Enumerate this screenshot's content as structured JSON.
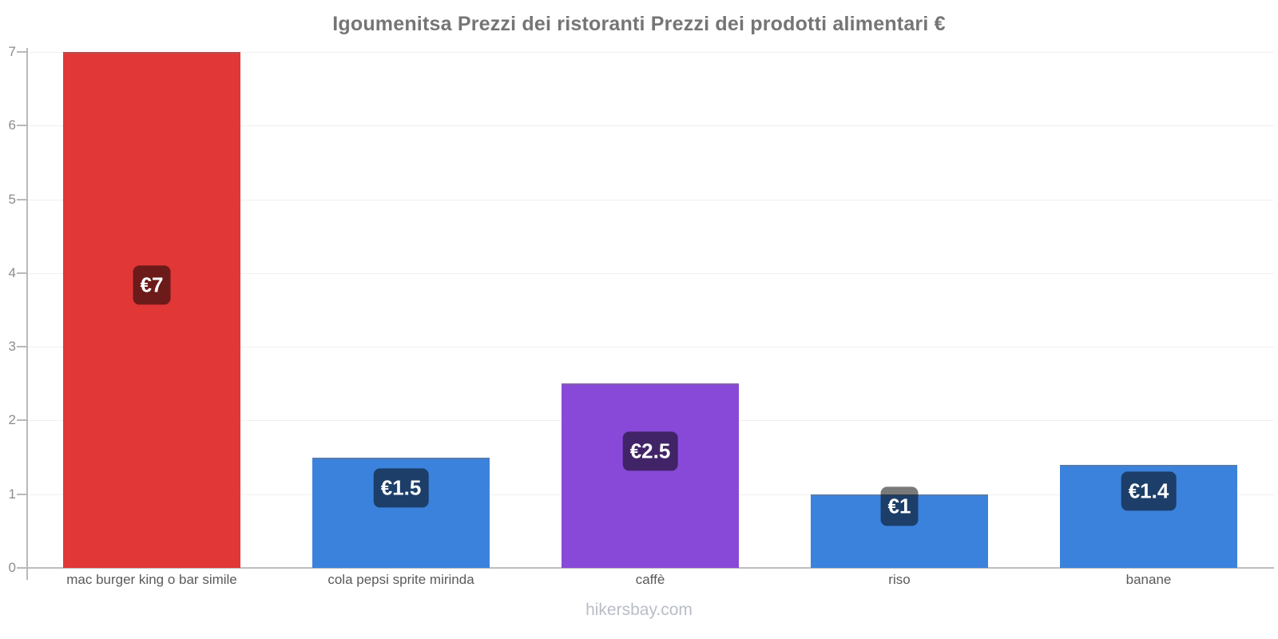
{
  "title": "Igoumenitsa Prezzi dei ristoranti Prezzi dei prodotti alimentari €",
  "footer": {
    "watermark": "hikersbay.com"
  },
  "chart_data": {
    "type": "bar",
    "title": "Igoumenitsa Prezzi dei ristoranti Prezzi dei prodotti alimentari €",
    "categories": [
      "mac burger king o bar simile",
      "cola pepsi sprite mirinda",
      "caffè",
      "riso",
      "banane"
    ],
    "values": [
      7,
      1.5,
      2.5,
      1,
      1.4
    ],
    "value_labels": [
      "€7",
      "€1.5",
      "€2.5",
      "€1",
      "€1.4"
    ],
    "currency": "€",
    "bar_colors": [
      "#e13737",
      "#3b82dc",
      "#8849d8",
      "#3b82dc",
      "#3b82dc"
    ],
    "badge_bg": "rgba(0,0,0,0.52)",
    "badge_text_color": "#ffffff",
    "xlabel": "",
    "ylabel": "",
    "ylim": [
      0,
      7
    ],
    "yticks": [
      0,
      1,
      2,
      3,
      4,
      5,
      6,
      7
    ],
    "grid": "horizontal",
    "legend": "none"
  },
  "colors": {
    "axis": "#b9b9b9",
    "baseline": "#bdbdbd",
    "grid": "#f0f0f0",
    "title": "#757575",
    "y_tick_label": "#8c8c8c",
    "x_category_label": "#5a5a5a",
    "watermark": "#b9bdc7",
    "background": "#ffffff"
  }
}
